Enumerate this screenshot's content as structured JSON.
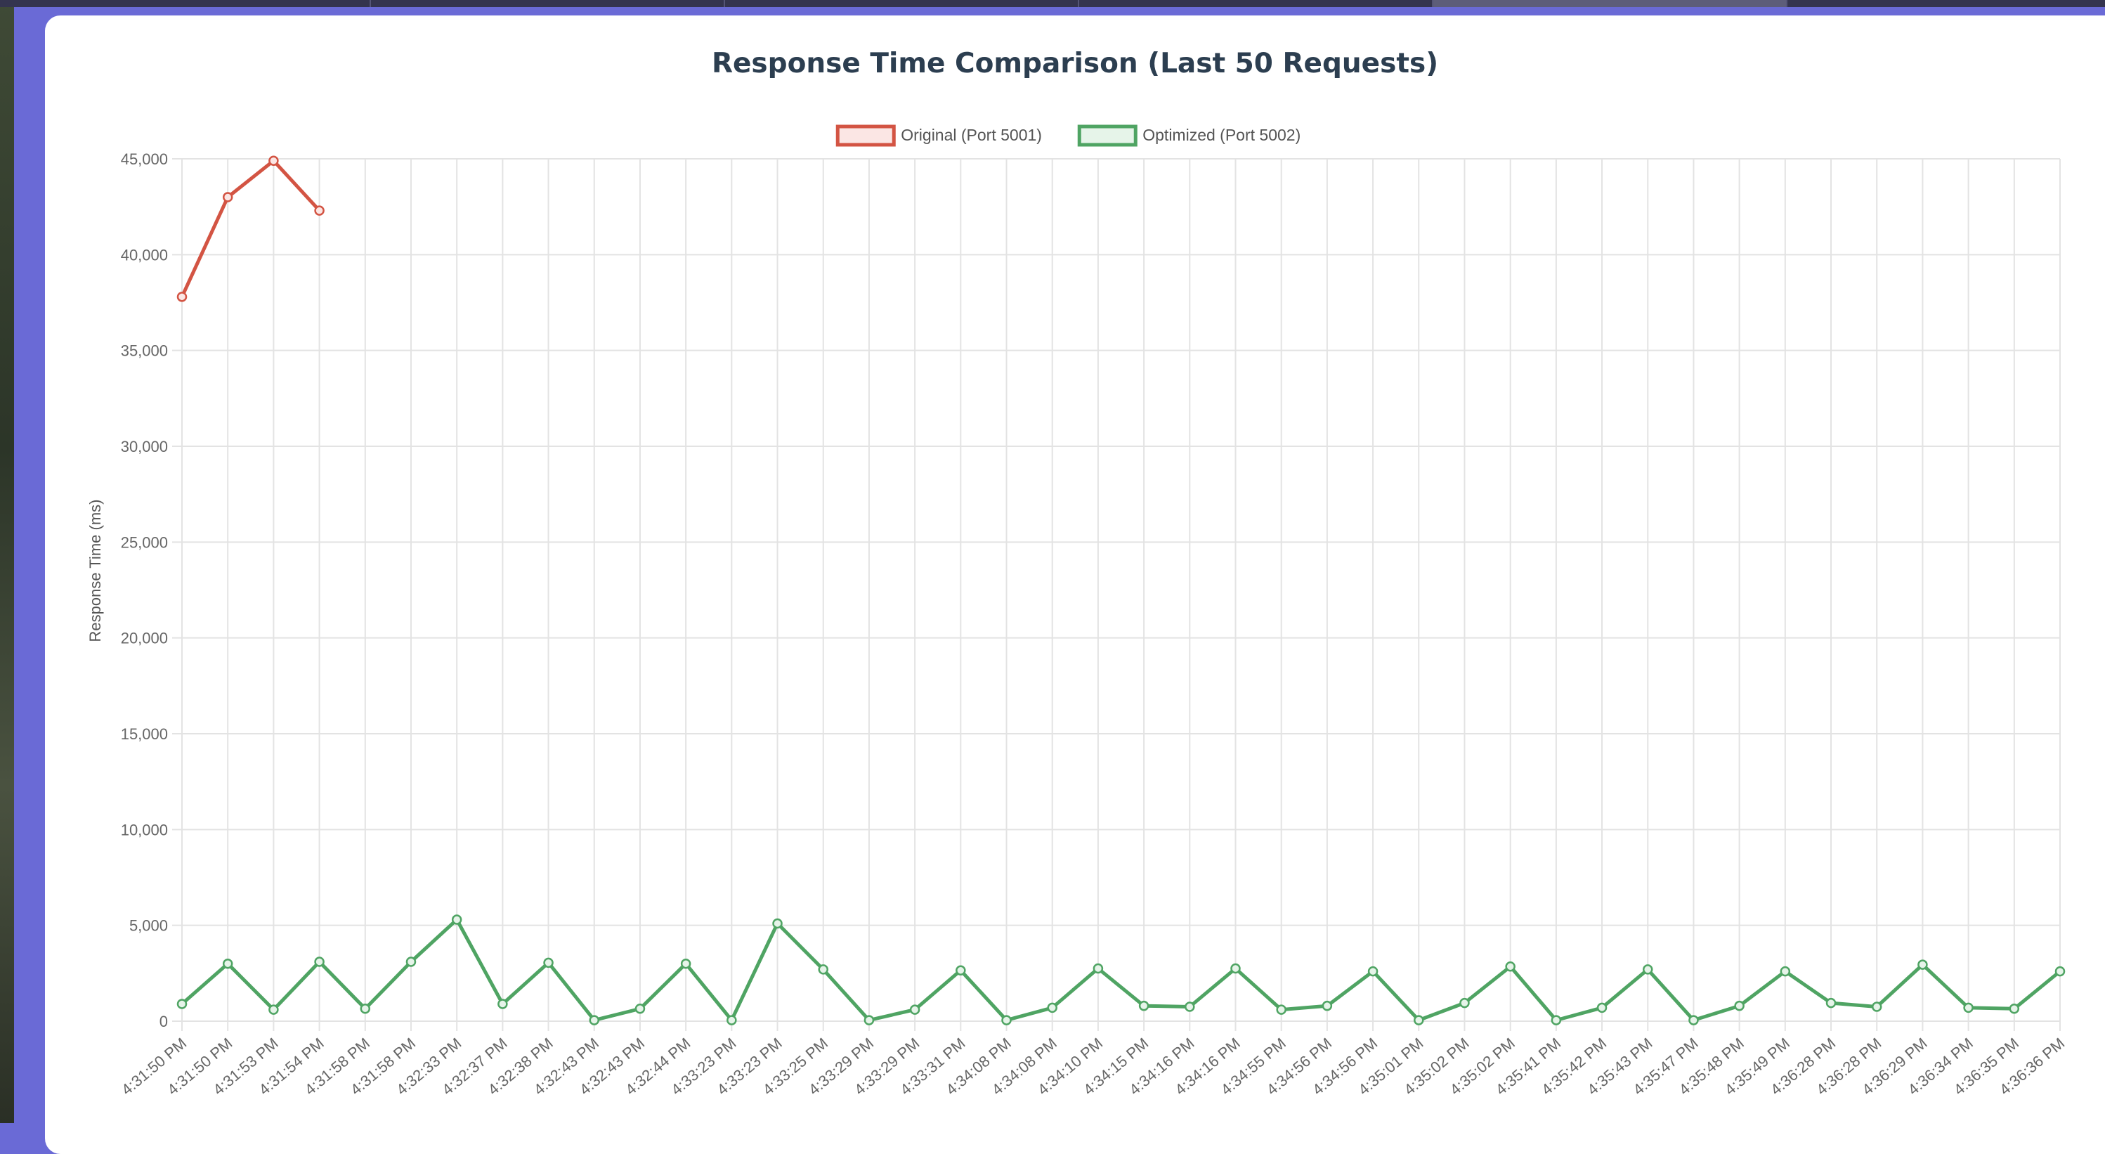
{
  "chart_data": {
    "type": "line",
    "title": "Response Time Comparison (Last 50 Requests)",
    "ylabel": "Response Time (ms)",
    "xlabel": "",
    "ylim": [
      0,
      45000
    ],
    "yticks": [
      0,
      5000,
      10000,
      15000,
      20000,
      25000,
      30000,
      35000,
      40000,
      45000
    ],
    "ytick_labels": [
      "0",
      "5,000",
      "10,000",
      "15,000",
      "20,000",
      "25,000",
      "30,000",
      "35,000",
      "40,000",
      "45,000"
    ],
    "grid": true,
    "legend_position": "top-center",
    "categories": [
      "4:31:50 PM",
      "4:31:50 PM",
      "4:31:53 PM",
      "4:31:54 PM",
      "4:31:58 PM",
      "4:31:58 PM",
      "4:32:33 PM",
      "4:32:37 PM",
      "4:32:38 PM",
      "4:32:43 PM",
      "4:32:43 PM",
      "4:32:44 PM",
      "4:33:23 PM",
      "4:33:23 PM",
      "4:33:25 PM",
      "4:33:29 PM",
      "4:33:29 PM",
      "4:33:31 PM",
      "4:34:08 PM",
      "4:34:08 PM",
      "4:34:10 PM",
      "4:34:15 PM",
      "4:34:16 PM",
      "4:34:16 PM",
      "4:34:55 PM",
      "4:34:56 PM",
      "4:34:56 PM",
      "4:35:01 PM",
      "4:35:02 PM",
      "4:35:02 PM",
      "4:35:41 PM",
      "4:35:42 PM",
      "4:35:43 PM",
      "4:35:47 PM",
      "4:35:48 PM",
      "4:35:49 PM",
      "4:36:28 PM",
      "4:36:28 PM",
      "4:36:29 PM",
      "4:36:34 PM",
      "4:36:35 PM",
      "4:36:36 PM"
    ],
    "series": [
      {
        "name": "Original (Port 5001)",
        "color": "#d35443",
        "fill": "#fbe6e4",
        "values": [
          37800,
          43000,
          44900,
          42300,
          null,
          null,
          null,
          null,
          null,
          null,
          null,
          null,
          null,
          null,
          null,
          null,
          null,
          null,
          null,
          null,
          null,
          null,
          null,
          null,
          null,
          null,
          null,
          null,
          null,
          null,
          null,
          null,
          null,
          null,
          null,
          null,
          null,
          null,
          null,
          null,
          null,
          null
        ]
      },
      {
        "name": "Optimized (Port 5002)",
        "color": "#4fa463",
        "fill": "#e6f4e9",
        "values": [
          900,
          3000,
          600,
          3100,
          650,
          3100,
          5300,
          900,
          3050,
          50,
          650,
          3000,
          50,
          5100,
          2700,
          50,
          600,
          2650,
          50,
          700,
          2750,
          800,
          750,
          2750,
          600,
          800,
          2600,
          50,
          950,
          2850,
          50,
          700,
          2700,
          50,
          800,
          2600,
          950,
          750,
          2950,
          700,
          650,
          2600
        ]
      }
    ]
  }
}
